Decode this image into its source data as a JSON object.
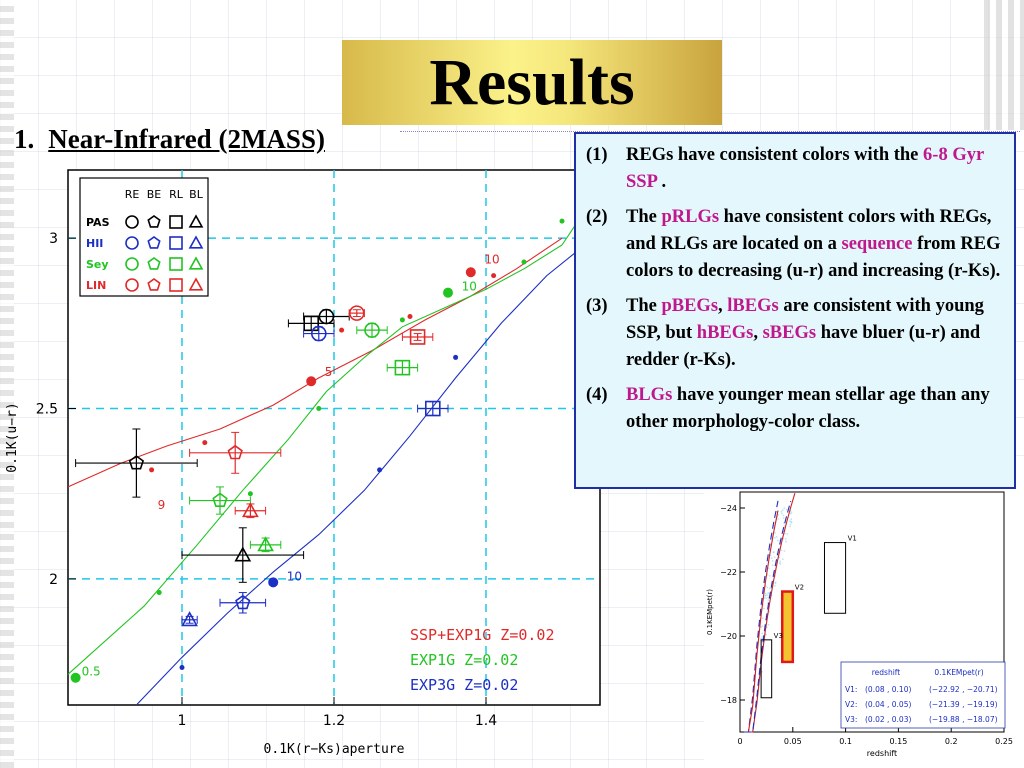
{
  "slide": {
    "title": "Results",
    "section_number": "1.",
    "section_title": "Near-Infrared (2MASS)"
  },
  "notes": [
    {
      "num": "(1)",
      "parts": [
        {
          "t": "REGs have consistent colors with the "
        },
        {
          "t": "6-8 Gyr SSP",
          "hl": true
        },
        {
          "t": " ."
        }
      ]
    },
    {
      "num": "(2)",
      "parts": [
        {
          "t": "The "
        },
        {
          "t": "pRLGs",
          "hl": true
        },
        {
          "t": " have consistent colors with REGs, and RLGs are located on a "
        },
        {
          "t": "sequence",
          "hl": true
        },
        {
          "t": " from REG colors to decreasing (u-r) and increasing (r-Ks)."
        }
      ]
    },
    {
      "num": "(3)",
      "parts": [
        {
          "t": "The "
        },
        {
          "t": "pBEGs",
          "hl": true
        },
        {
          "t": ", "
        },
        {
          "t": "lBEGs",
          "hl": true
        },
        {
          "t": " are consistent with young SSP, but "
        },
        {
          "t": "hBEGs",
          "hl": true
        },
        {
          "t": ", "
        },
        {
          "t": "sBEGs",
          "hl": true
        },
        {
          "t": " have bluer (u-r) and redder (r-Ks)."
        }
      ]
    },
    {
      "num": "(4)",
      "parts": [
        {
          "t": "BLGs",
          "hl": true
        },
        {
          "t": " have younger mean stellar age than any other morphology-color class."
        }
      ]
    }
  ],
  "colors": {
    "highlight": "#c0188c",
    "pas": "#000000",
    "hii": "#1d2fc4",
    "sey": "#22c422",
    "lin": "#e02a2a",
    "guide": "#1ec8e6",
    "notes_border": "#1f2fa8",
    "notes_bg": "#e3f7fc"
  },
  "chart_data": [
    {
      "type": "scatter",
      "title": "",
      "xlabel": "0.1K(r−Ks)aperture",
      "ylabel": "0.1K(u−r)",
      "xlim": [
        0.85,
        1.55
      ],
      "ylim": [
        1.63,
        3.2
      ],
      "xticks": [
        1,
        1.2,
        1.4
      ],
      "xtick_labels": [
        "1",
        "1.2",
        "1.4"
      ],
      "yticks": [
        2,
        2.5,
        3
      ],
      "ytick_labels": [
        "2",
        "2.5",
        "3"
      ],
      "grid": "dashed guide lines at tick positions",
      "legend": {
        "placement": "top-left",
        "columns": [
          "RE",
          "BE",
          "RL",
          "BL"
        ],
        "rows": [
          {
            "label": "PAS",
            "color": "pas"
          },
          {
            "label": "HII",
            "color": "hii"
          },
          {
            "label": "Sey",
            "color": "sey"
          },
          {
            "label": "LIN",
            "color": "lin"
          }
        ]
      },
      "model_legend": [
        {
          "label": "SSP+EXP1G Z=0.02",
          "color": "lin"
        },
        {
          "label": "EXP1G Z=0.02",
          "color": "sey"
        },
        {
          "label": "EXP3G Z=0.02",
          "color": "hii"
        }
      ],
      "series": [
        {
          "name": "SSP+EXP1G Z=0.02",
          "color": "lin",
          "x": [
            0.85,
            0.92,
            0.98,
            1.05,
            1.12,
            1.18,
            1.25,
            1.32,
            1.38,
            1.44,
            1.5
          ],
          "y": [
            2.27,
            2.34,
            2.39,
            2.44,
            2.51,
            2.59,
            2.67,
            2.76,
            2.83,
            2.91,
            3.0
          ],
          "markers": [
            {
              "x": 0.96,
              "y": 2.32,
              "s": 1
            },
            {
              "x": 1.03,
              "y": 2.4,
              "s": 1
            },
            {
              "x": 1.17,
              "y": 2.58,
              "s": 2
            },
            {
              "x": 1.21,
              "y": 2.73,
              "s": 1
            },
            {
              "x": 1.3,
              "y": 2.77,
              "s": 1
            },
            {
              "x": 1.38,
              "y": 2.9,
              "s": 2
            },
            {
              "x": 1.41,
              "y": 2.89,
              "s": 1
            }
          ]
        },
        {
          "name": "EXP1G Z=0.02",
          "color": "sey",
          "x": [
            0.85,
            0.95,
            1.02,
            1.08,
            1.14,
            1.19,
            1.24,
            1.29,
            1.34,
            1.4,
            1.45,
            1.5,
            1.53
          ],
          "y": [
            1.72,
            1.92,
            2.1,
            2.26,
            2.41,
            2.55,
            2.65,
            2.74,
            2.79,
            2.85,
            2.91,
            2.98,
            3.08
          ],
          "markers": [
            {
              "x": 0.86,
              "y": 1.71,
              "s": 2
            },
            {
              "x": 0.97,
              "y": 1.96,
              "s": 1
            },
            {
              "x": 1.09,
              "y": 2.25,
              "s": 1
            },
            {
              "x": 1.18,
              "y": 2.5,
              "s": 1
            },
            {
              "x": 1.29,
              "y": 2.76,
              "s": 1
            },
            {
              "x": 1.35,
              "y": 2.84,
              "s": 2
            },
            {
              "x": 1.45,
              "y": 2.93,
              "s": 1
            },
            {
              "x": 1.5,
              "y": 3.05,
              "s": 1
            }
          ]
        },
        {
          "name": "EXP3G Z=0.02",
          "color": "hii",
          "x": [
            0.94,
            1.0,
            1.06,
            1.12,
            1.18,
            1.24,
            1.3,
            1.36,
            1.42,
            1.48,
            1.53
          ],
          "y": [
            1.63,
            1.77,
            1.9,
            2.02,
            2.13,
            2.26,
            2.42,
            2.59,
            2.75,
            2.89,
            2.98
          ],
          "markers": [
            {
              "x": 1.0,
              "y": 1.74,
              "s": 1
            },
            {
              "x": 1.12,
              "y": 1.99,
              "s": 2
            },
            {
              "x": 1.26,
              "y": 2.32,
              "s": 1
            },
            {
              "x": 1.36,
              "y": 2.65,
              "s": 1
            }
          ]
        }
      ],
      "labels": [
        {
          "text": "10",
          "x": 1.39,
          "y": 2.92,
          "color": "lin"
        },
        {
          "text": "10",
          "x": 1.36,
          "y": 2.84,
          "color": "sey"
        },
        {
          "text": "5",
          "x": 1.18,
          "y": 2.59,
          "color": "lin"
        },
        {
          "text": "9",
          "x": 0.96,
          "y": 2.2,
          "color": "lin"
        },
        {
          "text": "10",
          "x": 1.13,
          "y": 1.99,
          "color": "hii"
        },
        {
          "text": "0.5",
          "x": 0.86,
          "y": 1.71,
          "color": "sey"
        }
      ],
      "points": [
        {
          "cls": "pas",
          "shape": "pentagon",
          "x": 0.94,
          "y": 2.34,
          "xerr": 0.08,
          "yerr": 0.1
        },
        {
          "cls": "pas",
          "shape": "circle",
          "x": 1.19,
          "y": 2.77,
          "xerr": 0.03,
          "yerr": 0.02
        },
        {
          "cls": "pas",
          "shape": "square",
          "x": 1.17,
          "y": 2.75,
          "xerr": 0.03,
          "yerr": 0.02
        },
        {
          "cls": "pas",
          "shape": "triangle",
          "x": 1.08,
          "y": 2.07,
          "xerr": 0.08,
          "yerr": 0.08
        },
        {
          "cls": "hii",
          "shape": "circle",
          "x": 1.18,
          "y": 2.72,
          "xerr": 0.02,
          "yerr": 0.02
        },
        {
          "cls": "hii",
          "shape": "square",
          "x": 1.33,
          "y": 2.5,
          "xerr": 0.02,
          "yerr": 0.02
        },
        {
          "cls": "hii",
          "shape": "pentagon",
          "x": 1.08,
          "y": 1.93,
          "xerr": 0.03,
          "yerr": 0.03
        },
        {
          "cls": "hii",
          "shape": "triangle",
          "x": 1.01,
          "y": 1.88,
          "xerr": 0.01,
          "yerr": 0.01
        },
        {
          "cls": "sey",
          "shape": "circle",
          "x": 1.25,
          "y": 2.73,
          "xerr": 0.02,
          "yerr": 0.02
        },
        {
          "cls": "sey",
          "shape": "square",
          "x": 1.29,
          "y": 2.62,
          "xerr": 0.02,
          "yerr": 0.02
        },
        {
          "cls": "sey",
          "shape": "pentagon",
          "x": 1.05,
          "y": 2.23,
          "xerr": 0.04,
          "yerr": 0.04
        },
        {
          "cls": "sey",
          "shape": "triangle",
          "x": 1.11,
          "y": 2.1,
          "xerr": 0.02,
          "yerr": 0.02
        },
        {
          "cls": "lin",
          "shape": "circle",
          "x": 1.23,
          "y": 2.78,
          "xerr": 0.01,
          "yerr": 0.01
        },
        {
          "cls": "lin",
          "shape": "square",
          "x": 1.31,
          "y": 2.71,
          "xerr": 0.02,
          "yerr": 0.01
        },
        {
          "cls": "lin",
          "shape": "pentagon",
          "x": 1.07,
          "y": 2.37,
          "xerr": 0.06,
          "yerr": 0.06
        },
        {
          "cls": "lin",
          "shape": "triangle",
          "x": 1.09,
          "y": 2.2,
          "xerr": 0.02,
          "yerr": 0.02
        }
      ]
    },
    {
      "type": "scatter",
      "title": "",
      "xlabel": "redshift",
      "ylabel": "0.1KEMpet(r)",
      "xlim": [
        0,
        0.25
      ],
      "ylim": [
        -17,
        -24.5
      ],
      "xticks": [
        0,
        0.05,
        0.1,
        0.15,
        0.2,
        0.25
      ],
      "xtick_labels": [
        "0",
        "0.05",
        "0.1",
        "0.15",
        "0.2",
        "0.25"
      ],
      "yticks": [
        -18,
        -20,
        -22,
        -24
      ],
      "ytick_labels": [
        "−18",
        "−20",
        "−22",
        "−24"
      ],
      "boxes": [
        {
          "name": "V1",
          "z": [
            0.08,
            0.1
          ],
          "M": [
            -22.92,
            -20.71
          ]
        },
        {
          "name": "V2",
          "z": [
            0.04,
            0.05
          ],
          "M": [
            -21.39,
            -19.19
          ],
          "highlight": true
        },
        {
          "name": "V3",
          "z": [
            0.02,
            0.03
          ],
          "M": [
            -19.88,
            -18.07
          ]
        }
      ],
      "table": {
        "headers": [
          "redshift",
          "0.1KEMpet(r)"
        ],
        "rows": [
          {
            "name": "V1:",
            "z": "(0.08 , 0.10)",
            "M": "(−22.92 , −20.71)"
          },
          {
            "name": "V2:",
            "z": "(0.04 , 0.05)",
            "M": "(−21.39 , −19.19)"
          },
          {
            "name": "V3:",
            "z": "(0.02 , 0.03)",
            "M": "(−19.88 , −18.07)"
          }
        ]
      }
    }
  ]
}
